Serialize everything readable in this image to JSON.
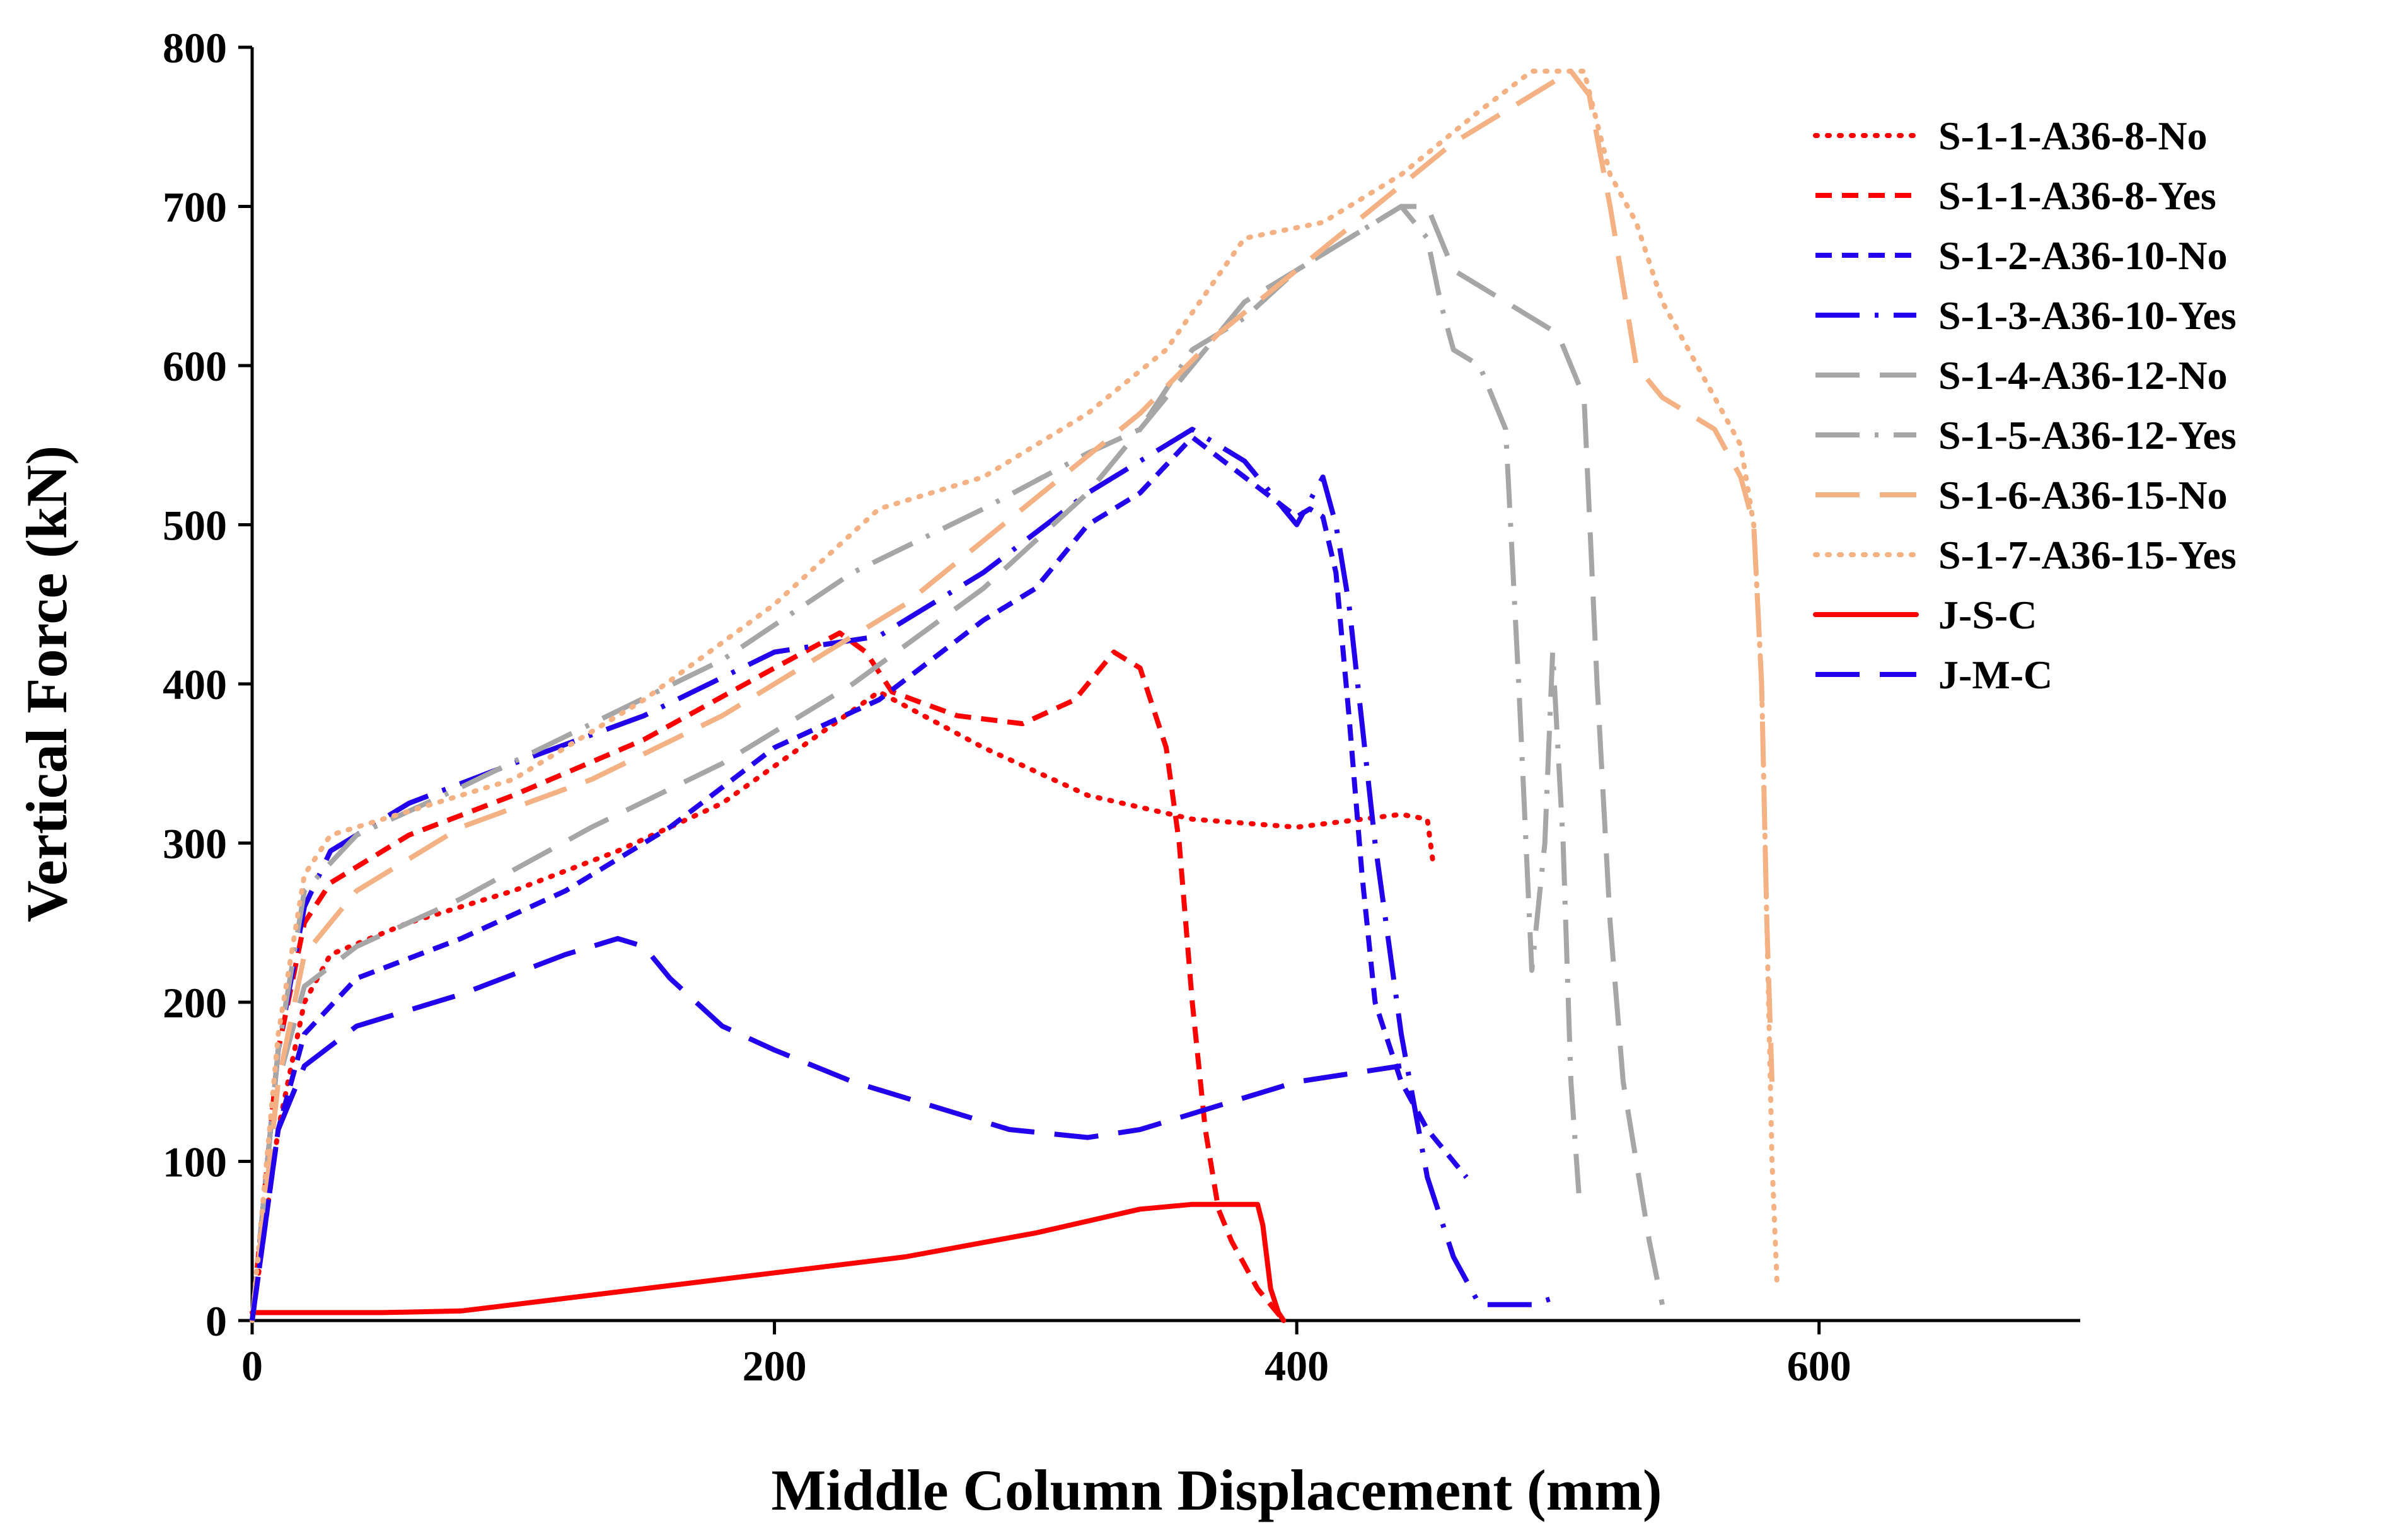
{
  "chart_data": {
    "type": "line",
    "title": "",
    "xlabel": "Middle Column Displacement (mm)",
    "ylabel": "Vertical Force (kN)",
    "xlim": [
      0,
      700
    ],
    "ylim": [
      0,
      800
    ],
    "xticks": [
      0,
      200,
      400,
      600
    ],
    "yticks": [
      0,
      100,
      200,
      300,
      400,
      500,
      600,
      700,
      800
    ],
    "xtick_labels": [
      "0",
      "200",
      "400",
      "600"
    ],
    "ytick_labels": [
      "0",
      "100",
      "200",
      "300",
      "400",
      "500",
      "600",
      "700",
      "800"
    ],
    "grid": false,
    "legend_position": "right",
    "series": [
      {
        "name": "S-1-1-A36-8-No",
        "color": "#ff0000",
        "dash": "dotted",
        "x": [
          0,
          10,
          20,
          30,
          60,
          100,
          140,
          180,
          210,
          240,
          280,
          320,
          360,
          400,
          440,
          450,
          452
        ],
        "y": [
          0,
          120,
          200,
          230,
          250,
          270,
          295,
          325,
          360,
          395,
          360,
          330,
          315,
          310,
          318,
          315,
          290
        ]
      },
      {
        "name": "S-1-1-A36-8-Yes",
        "color": "#ff0000",
        "dash": "dashed",
        "x": [
          0,
          10,
          20,
          30,
          60,
          100,
          150,
          200,
          225,
          235,
          245,
          270,
          295,
          315,
          330,
          340,
          350,
          355,
          360,
          365,
          370,
          375,
          380,
          385,
          390,
          395
        ],
        "y": [
          0,
          170,
          250,
          275,
          305,
          330,
          365,
          410,
          432,
          420,
          395,
          380,
          375,
          390,
          420,
          410,
          360,
          300,
          200,
          120,
          70,
          50,
          35,
          20,
          10,
          0
        ]
      },
      {
        "name": "S-1-2-A36-10-No",
        "color": "#2200ee",
        "dash": "dashed",
        "x": [
          0,
          10,
          20,
          40,
          80,
          120,
          160,
          200,
          240,
          280,
          300,
          320,
          330,
          340,
          360,
          380,
          400,
          405,
          410,
          415,
          420,
          425,
          430,
          440,
          450,
          460,
          465
        ],
        "y": [
          0,
          120,
          180,
          215,
          240,
          270,
          310,
          360,
          390,
          440,
          460,
          500,
          510,
          520,
          555,
          530,
          505,
          510,
          505,
          470,
          380,
          280,
          200,
          150,
          120,
          100,
          90
        ]
      },
      {
        "name": "S-1-3-A36-10-Yes",
        "color": "#2200ee",
        "dash": "dashdot",
        "x": [
          0,
          10,
          20,
          30,
          60,
          100,
          150,
          200,
          240,
          280,
          320,
          340,
          360,
          380,
          400,
          410,
          415,
          420,
          430,
          440,
          450,
          460,
          470,
          480,
          490,
          500
        ],
        "y": [
          0,
          170,
          260,
          295,
          325,
          350,
          380,
          420,
          430,
          470,
          520,
          540,
          560,
          540,
          500,
          530,
          500,
          450,
          300,
          180,
          90,
          40,
          10,
          10,
          10,
          15
        ]
      },
      {
        "name": "S-1-4-A36-12-No",
        "color": "#a6a6a6",
        "dash": "longdash",
        "x": [
          0,
          10,
          20,
          40,
          80,
          130,
          180,
          230,
          280,
          320,
          350,
          380,
          410,
          440,
          450,
          460,
          480,
          500,
          510,
          515,
          520,
          525,
          530,
          535,
          540
        ],
        "y": [
          0,
          150,
          210,
          235,
          265,
          310,
          350,
          400,
          460,
          520,
          580,
          640,
          670,
          700,
          700,
          660,
          640,
          620,
          580,
          400,
          250,
          150,
          100,
          50,
          10
        ]
      },
      {
        "name": "S-1-5-A36-12-Yes",
        "color": "#a6a6a6",
        "dash": "dashdot",
        "x": [
          0,
          10,
          20,
          40,
          80,
          130,
          180,
          230,
          280,
          320,
          340,
          360,
          380,
          400,
          420,
          440,
          450,
          455,
          460,
          470,
          480,
          485,
          490,
          495,
          498,
          502,
          505,
          508
        ],
        "y": [
          0,
          170,
          270,
          305,
          335,
          375,
          415,
          470,
          510,
          545,
          560,
          610,
          630,
          660,
          680,
          700,
          680,
          640,
          610,
          600,
          560,
          400,
          220,
          300,
          420,
          300,
          150,
          80
        ]
      },
      {
        "name": "S-1-6-A36-15-No",
        "color": "#f4b183",
        "dash": "longdash",
        "x": [
          0,
          10,
          20,
          40,
          80,
          130,
          180,
          220,
          250,
          280,
          310,
          340,
          370,
          400,
          430,
          460,
          490,
          505,
          512,
          520,
          530,
          540,
          560,
          570,
          575,
          578,
          580,
          582
        ],
        "y": [
          0,
          150,
          230,
          270,
          310,
          340,
          380,
          420,
          450,
          490,
          530,
          570,
          620,
          660,
          700,
          740,
          770,
          785,
          770,
          700,
          600,
          580,
          560,
          530,
          500,
          400,
          250,
          150
        ]
      },
      {
        "name": "S-1-7-A36-15-Yes",
        "color": "#f4b183",
        "dash": "dotted",
        "x": [
          0,
          10,
          20,
          30,
          60,
          100,
          150,
          200,
          240,
          280,
          320,
          350,
          380,
          410,
          440,
          470,
          490,
          510,
          520,
          530,
          540,
          560,
          570,
          575,
          578,
          580,
          582,
          584
        ],
        "y": [
          0,
          180,
          280,
          305,
          320,
          340,
          390,
          450,
          510,
          530,
          570,
          610,
          680,
          690,
          720,
          760,
          785,
          785,
          720,
          690,
          640,
          580,
          550,
          500,
          400,
          250,
          100,
          20
        ]
      },
      {
        "name": "J-S-C",
        "color": "#ff0000",
        "dash": "solid",
        "x": [
          0,
          50,
          80,
          100,
          150,
          200,
          250,
          300,
          340,
          360,
          370,
          380,
          385,
          387,
          390,
          393,
          395
        ],
        "y": [
          5,
          5,
          6,
          10,
          20,
          30,
          40,
          55,
          70,
          73,
          73,
          73,
          73,
          60,
          20,
          5,
          0
        ]
      },
      {
        "name": "J-M-C",
        "color": "#2200ee",
        "dash": "longdash",
        "x": [
          0,
          10,
          20,
          40,
          80,
          120,
          140,
          150,
          160,
          180,
          200,
          230,
          260,
          290,
          320,
          340,
          360,
          380,
          400,
          420,
          440
        ],
        "y": [
          0,
          120,
          160,
          185,
          205,
          230,
          240,
          235,
          215,
          185,
          170,
          150,
          135,
          120,
          115,
          120,
          130,
          140,
          150,
          155,
          160
        ]
      }
    ]
  }
}
